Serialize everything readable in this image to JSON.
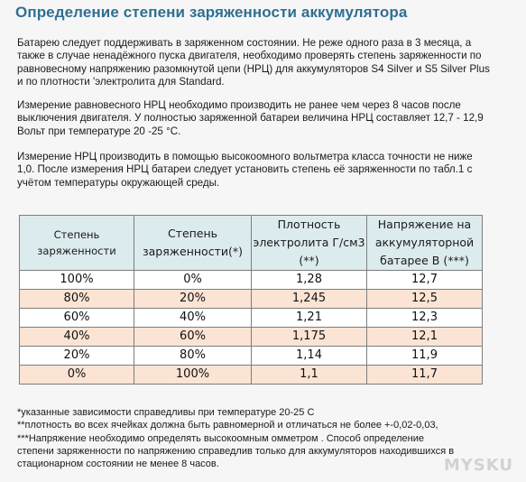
{
  "title": "Определение степени заряженности аккумулятора",
  "paragraphs": {
    "p1": [
      "Батарею следует поддерживать в заряженном состоянии. Не реже одного раза в 3 месяца, а",
      "также в случае ненадёжного пуска двигателя, необходимо проверять степень заряженности по",
      "равновесному напряжению разомкнутой цепи (НРЦ) для аккумуляторов S4 Silver и S5 Silver Plus",
      "и по плотности 'электролита для Standard."
    ],
    "p2": [
      "Измерение равновесного НРЦ необходимо производить не ранее чем через 8 часов после",
      "выключения двигателя. У полностью заряженной батареи величина НРЦ составляет 12,7 - 12,9",
      "Вольт при температуре 20 -25 °С."
    ],
    "p3": [
      "Измерение НРЦ производить в помощью высокоомного вольтметра класса точности не ниже",
      "1,0. После измерения НРЦ батареи следует установить степень её заряженности по табл.1 с",
      "учётом температуры окружающей среды."
    ]
  },
  "table": {
    "headers": [
      [
        "Степень",
        "заряженности"
      ],
      [
        "Степень",
        "заряженности(*)"
      ],
      [
        "Плотность",
        "электролита Г/см3",
        "(**)"
      ],
      [
        "Напряжение на",
        "аккумуляторной",
        "батарее В (***)"
      ]
    ],
    "rows": [
      [
        "100%",
        "0%",
        "1,28",
        "12,7"
      ],
      [
        "80%",
        "20%",
        "1,245",
        "12,5"
      ],
      [
        "60%",
        "40%",
        "1,21",
        "12,3"
      ],
      [
        "40%",
        "60%",
        "1,175",
        "12,1"
      ],
      [
        "20%",
        "80%",
        "1,14",
        "11,9"
      ],
      [
        "0%",
        "100%",
        "1,1",
        "11,7"
      ]
    ],
    "header_bg": "#dcebee",
    "row_bg_a": "#ffffff",
    "row_bg_b": "#fbe4d4"
  },
  "notes": [
    " *указанные зависимости справедливы при температуре 20-25 С",
    "**плотность во всех ячейках должна быть равномерной и отличаться не более +-0,02-0,03,",
    "***Напряжение необходимо определять высокоомным омметром . Способ определение",
    "степени заряженности по напряжению справедлив только для аккумуляторов находившихся в",
    "стационарном состоянии не менее 8 часов."
  ],
  "watermark": "MYSKU",
  "colors": {
    "title": "#2f6f93",
    "background": "#f6f6f6"
  }
}
